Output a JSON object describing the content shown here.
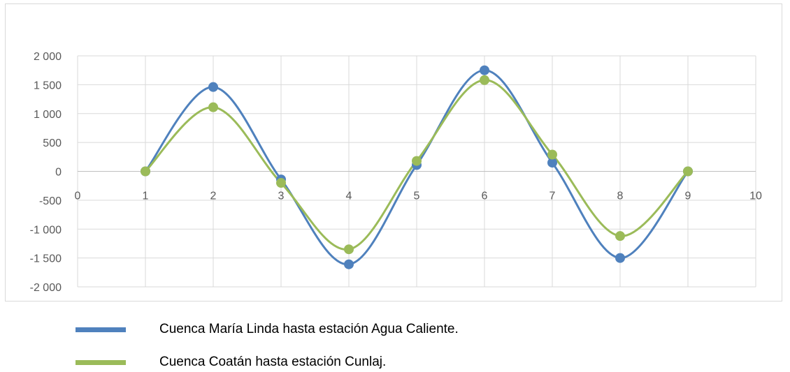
{
  "chart_data": {
    "type": "scatter",
    "smooth_lines": true,
    "x_ticks": [
      "0",
      "1",
      "2",
      "3",
      "4",
      "5",
      "6",
      "7",
      "8",
      "9",
      "10"
    ],
    "y_ticks": [
      "2 000",
      "1 500",
      "1 000",
      "500",
      "0",
      "-500",
      "-1 000",
      "-1 500",
      "-2 000"
    ],
    "xlim": [
      0,
      10
    ],
    "ylim": [
      -2000,
      2000
    ],
    "grid": true,
    "legend_position": "bottom",
    "series": [
      {
        "name": "Cuenca María Linda hasta estación Agua Caliente.",
        "color": "#4f81bd",
        "x": [
          1,
          2,
          3,
          4,
          5,
          6,
          7,
          8,
          9
        ],
        "y": [
          0,
          1460,
          -140,
          -1610,
          110,
          1750,
          150,
          -1500,
          0
        ]
      },
      {
        "name": "Cuenca Coatán hasta estación Cunlaj.",
        "color": "#9bbb59",
        "x": [
          1,
          2,
          3,
          4,
          5,
          6,
          7,
          8,
          9
        ],
        "y": [
          0,
          1110,
          -200,
          -1350,
          180,
          1580,
          290,
          -1120,
          0
        ]
      }
    ]
  }
}
